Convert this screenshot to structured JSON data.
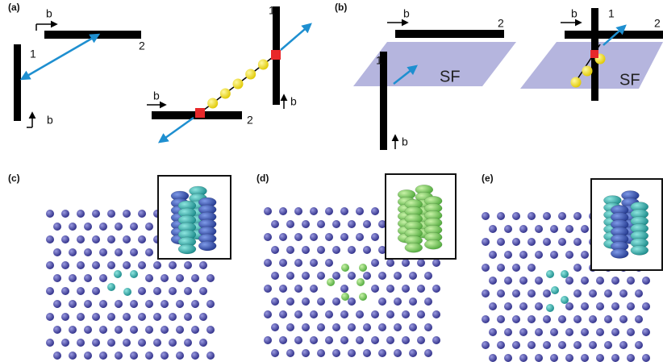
{
  "panels": [
    {
      "label": "(a)",
      "annotations": [
        "b",
        "2",
        "1",
        "b",
        "1",
        "b",
        "b",
        "2"
      ]
    },
    {
      "label": "(b)",
      "annotations": [
        "b",
        "2",
        "1",
        "SF",
        "b",
        "b",
        "1",
        "2",
        "SF"
      ]
    },
    {
      "label": "(c)",
      "annotations": []
    },
    {
      "label": "(d)",
      "annotations": []
    },
    {
      "label": "(e)",
      "annotations": []
    }
  ]
}
